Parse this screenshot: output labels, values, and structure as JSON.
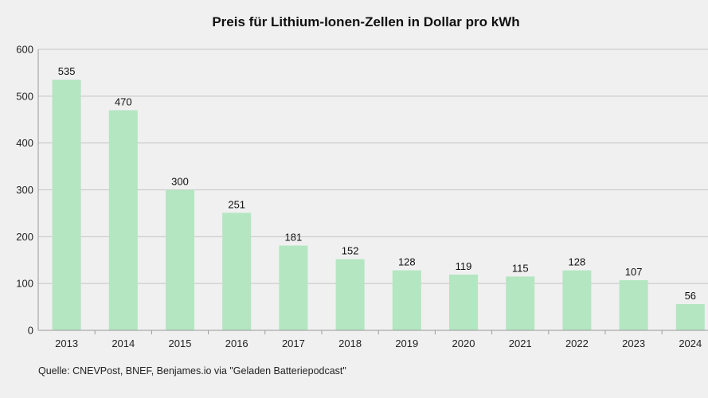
{
  "chart_data": {
    "type": "bar",
    "title": "Preis für Lithium-Ionen-Zellen in Dollar pro kWh",
    "categories": [
      "2013",
      "2014",
      "2015",
      "2016",
      "2017",
      "2018",
      "2019",
      "2020",
      "2021",
      "2022",
      "2023",
      "2024"
    ],
    "values": [
      535,
      470,
      300,
      251,
      181,
      152,
      128,
      119,
      115,
      128,
      107,
      56
    ],
    "data_labels": [
      "535",
      "470",
      "300",
      "251",
      "181",
      "152",
      "128",
      "119",
      "115",
      "128",
      "107",
      "56"
    ],
    "ylim": [
      0,
      600
    ],
    "yticks": [
      "0",
      "100",
      "200",
      "300",
      "400",
      "500",
      "600"
    ],
    "grid": true,
    "legend": "none",
    "bar_color": "#b3e6c1",
    "source": "Quelle: CNEVPost, BNEF, Benjames.io via \"Geladen Batteriepodcast\""
  }
}
